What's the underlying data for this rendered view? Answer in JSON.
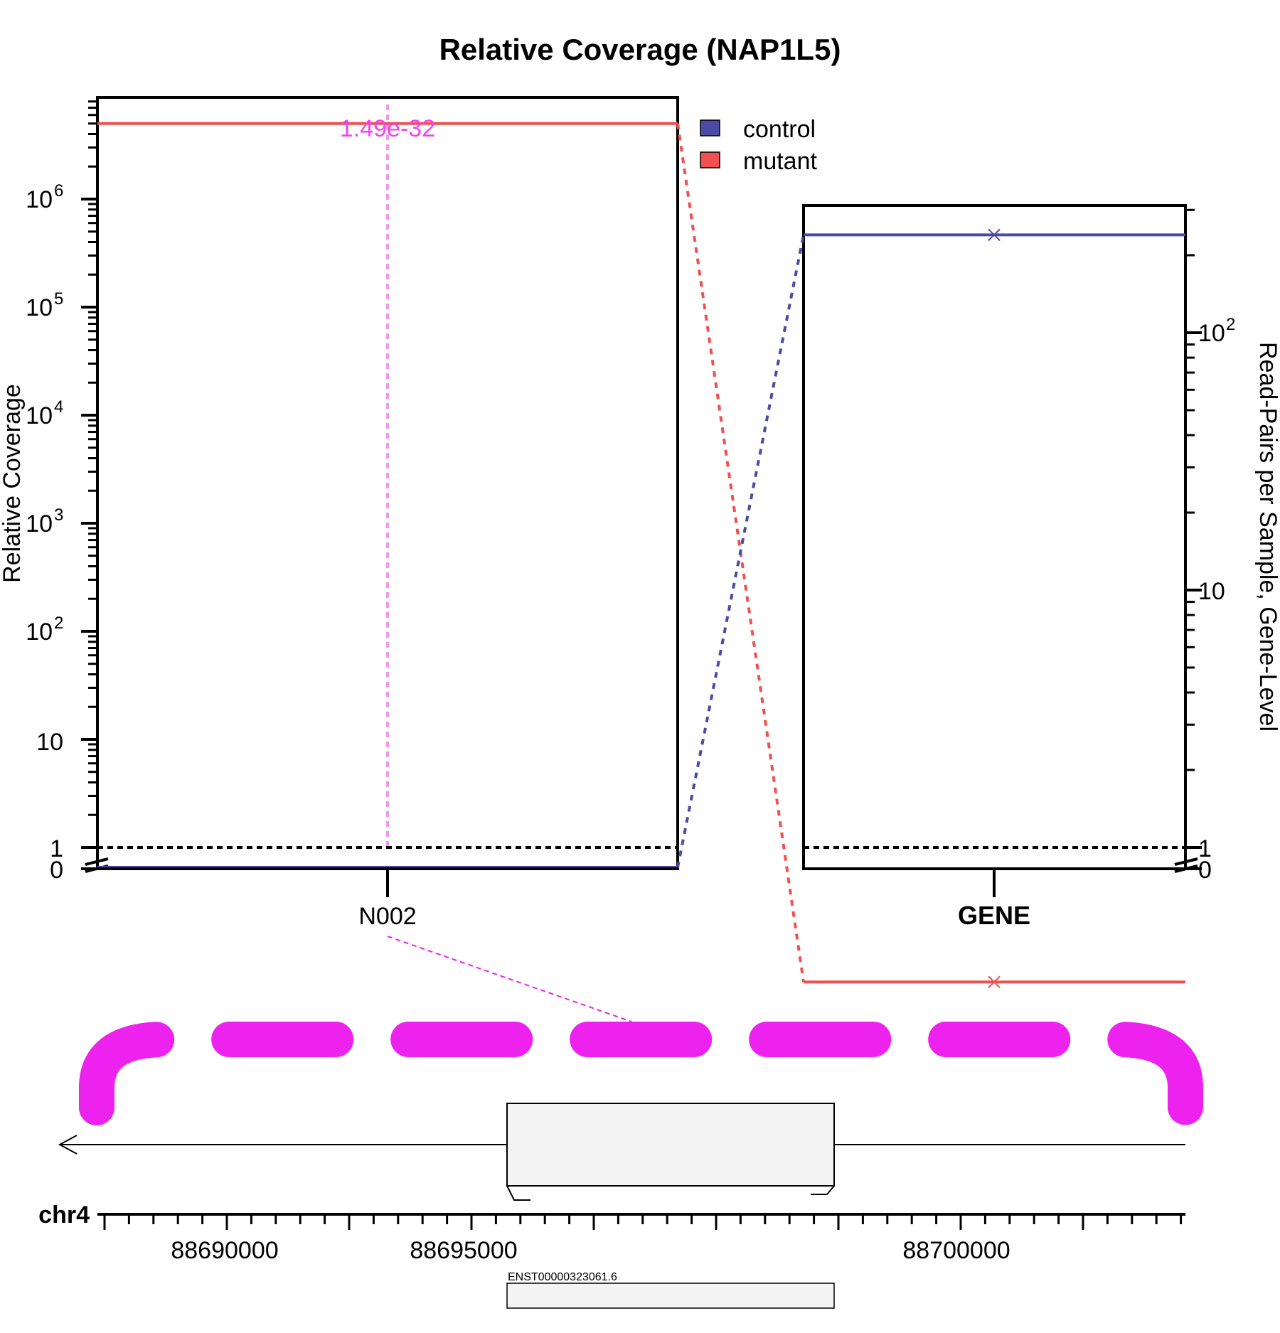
{
  "chart_data": {
    "type": "line",
    "title": "Relative Coverage (NAP1L5)",
    "colors": {
      "control": "#4b4ba6",
      "mutant": "#f05050",
      "highlight": "#ee22ee"
    },
    "left_panel": {
      "ylabel": "Relative Coverage",
      "yscale": "log",
      "y_tick_labels": [
        "0",
        "1",
        "10",
        "10^2",
        "10^3",
        "10^4",
        "10^5",
        "10^6"
      ],
      "categories": [
        "N002"
      ],
      "annotation": "1.49e-32",
      "series": [
        {
          "name": "control",
          "values": [
            0
          ]
        },
        {
          "name": "mutant",
          "values": [
            5000000
          ]
        }
      ],
      "reference_line": 1
    },
    "right_panel": {
      "ylabel": "Read-Pairs per Sample, Gene-Level",
      "yscale": "log",
      "y_tick_labels": [
        "0",
        "1",
        "10",
        "10^2"
      ],
      "categories": [
        "GENE"
      ],
      "series": [
        {
          "name": "control",
          "values": [
            240
          ]
        },
        {
          "name": "mutant",
          "values": [
            0.3
          ]
        }
      ],
      "reference_line": 1
    },
    "legend": {
      "placement": "top-center",
      "entries": [
        "control",
        "mutant"
      ]
    },
    "gene_track": {
      "chromosome": "chr4",
      "strand": "-",
      "x_tick_labels": [
        "88690000",
        "88695000",
        "88700000"
      ],
      "transcript": "ENST00000323061.6"
    }
  }
}
